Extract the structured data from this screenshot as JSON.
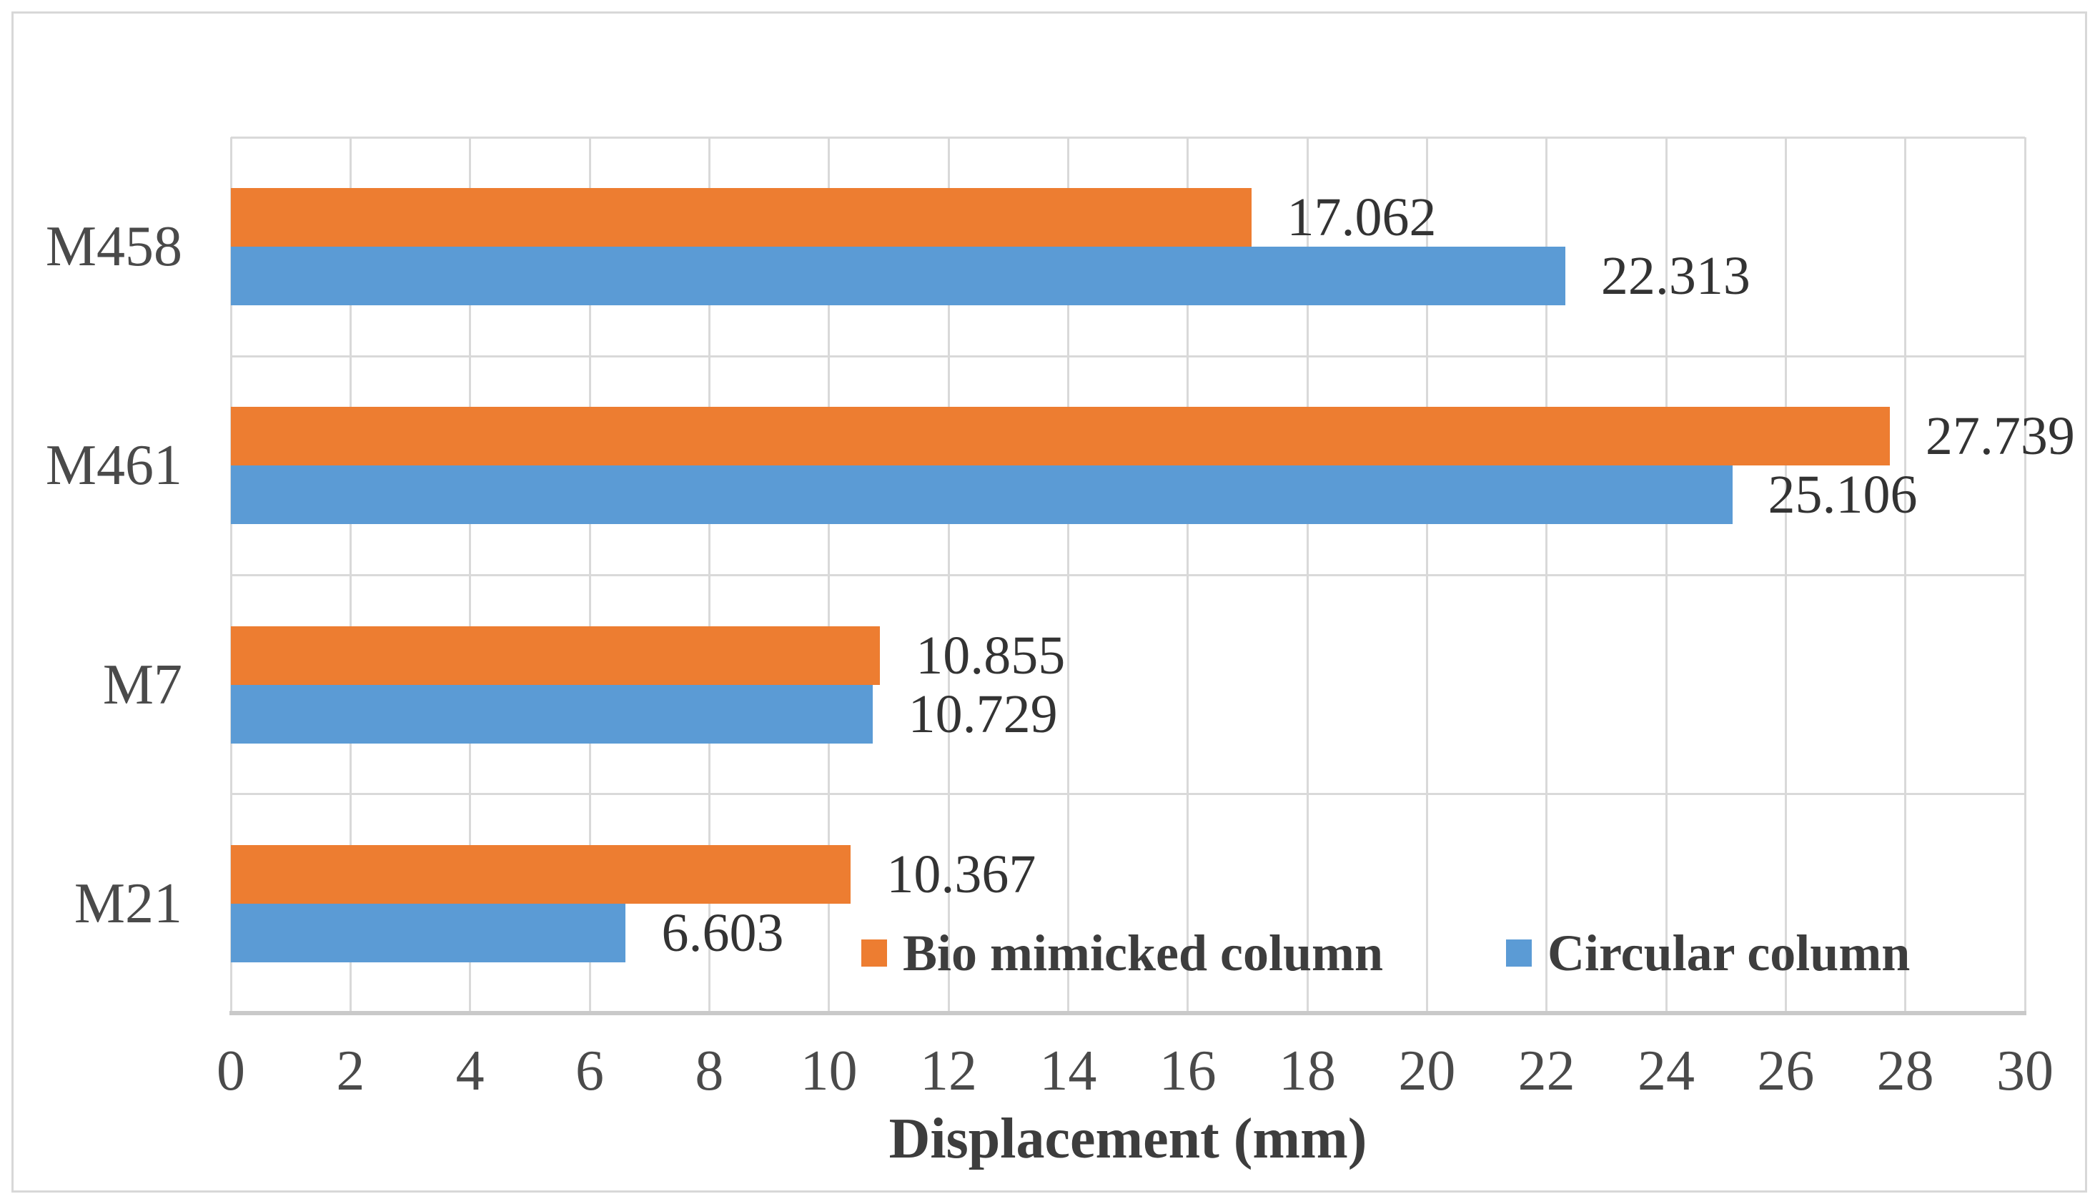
{
  "chart_data": {
    "type": "bar",
    "orientation": "horizontal",
    "title": "",
    "xlabel": "Displacement (mm)",
    "ylabel": "",
    "xlim": [
      0,
      30
    ],
    "xticks": [
      0,
      2,
      4,
      6,
      8,
      10,
      12,
      14,
      16,
      18,
      20,
      22,
      24,
      26,
      28,
      30
    ],
    "grid": true,
    "categories": [
      "M458",
      "M461",
      "M7",
      "M21"
    ],
    "series": [
      {
        "name": "Bio mimicked column",
        "color": "#ED7D31",
        "values": [
          17.062,
          27.739,
          10.855,
          10.367
        ],
        "labels": [
          "17.062",
          "27.739",
          "10.855",
          "10.367"
        ]
      },
      {
        "name": "Circular column",
        "color": "#5B9BD5",
        "values": [
          22.313,
          25.106,
          10.729,
          6.603
        ],
        "labels": [
          "22.313",
          "25.106",
          "10.729",
          "6.603"
        ]
      }
    ],
    "legend_position": "inside-bottom",
    "colors": {
      "gridline": "#d9d9d9",
      "axis_line": "#c9c9c9",
      "text": "#3d3d3d"
    }
  }
}
